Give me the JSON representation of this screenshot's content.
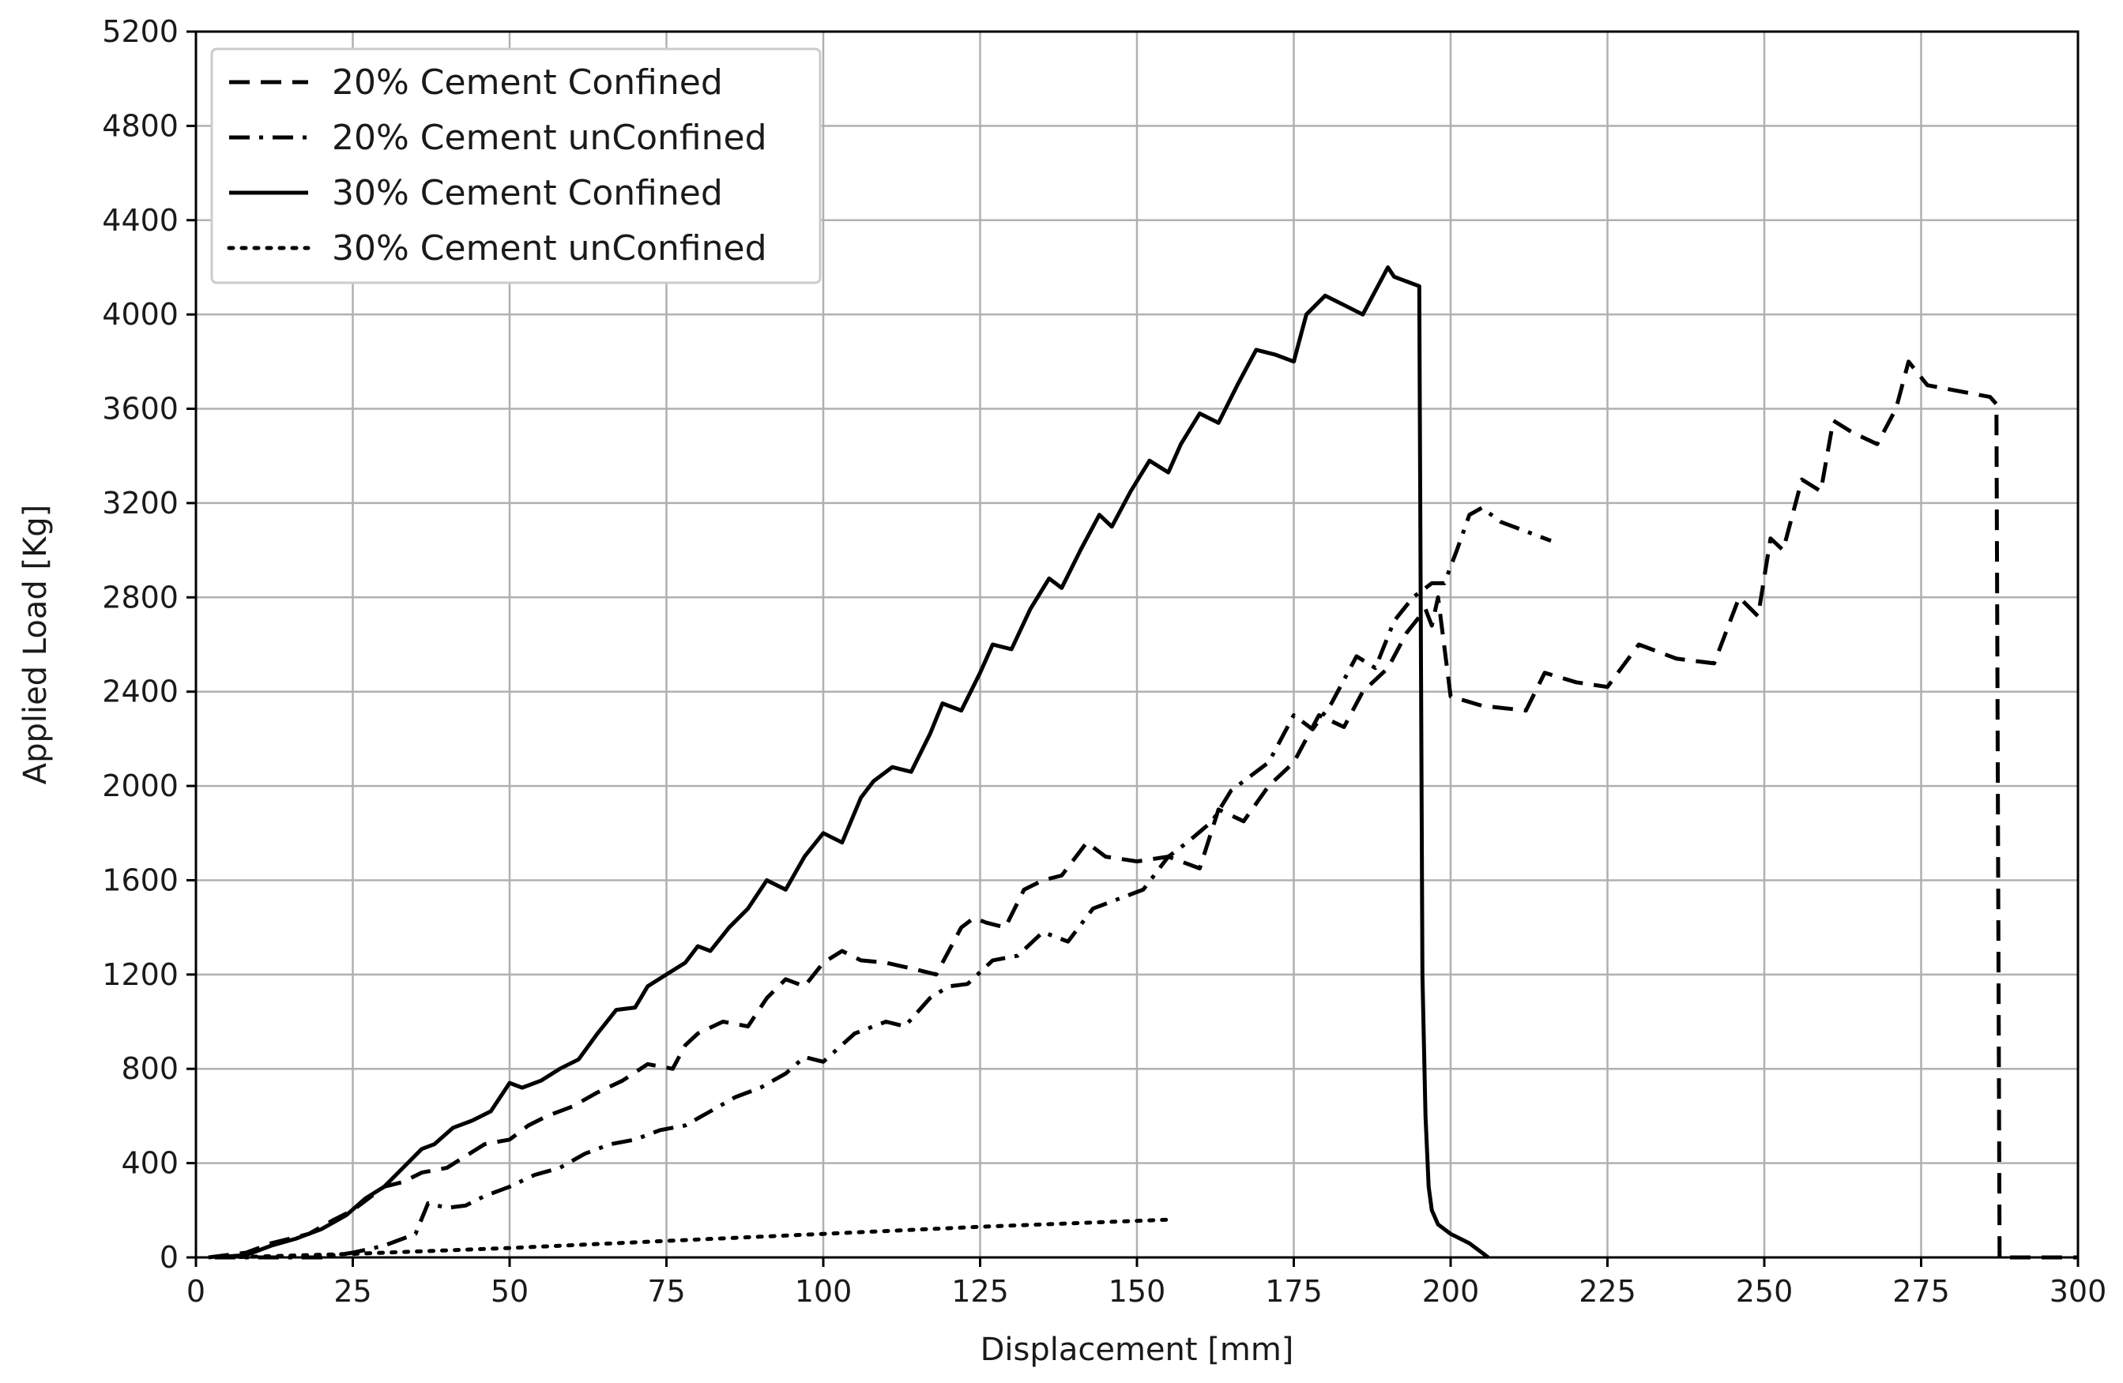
{
  "chart_data": {
    "type": "line",
    "title": "",
    "xlabel": "Displacement [mm]",
    "ylabel": "Applied Load [Kg]",
    "xlim": [
      0,
      300
    ],
    "ylim": [
      0,
      5200
    ],
    "xticks": [
      0,
      25,
      50,
      75,
      100,
      125,
      150,
      175,
      200,
      225,
      250,
      275,
      300
    ],
    "yticks": [
      0,
      400,
      800,
      1200,
      1600,
      2000,
      2400,
      2800,
      3200,
      3600,
      4000,
      4400,
      4800,
      5200
    ],
    "grid": true,
    "legend_position": "top-left",
    "series": [
      {
        "name": "20% Cement Confined",
        "linestyle": "dashed",
        "color": "#000000",
        "x": [
          2,
          8,
          12,
          18,
          22,
          25,
          28,
          30,
          33,
          36,
          40,
          43,
          46,
          50,
          53,
          56,
          60,
          64,
          68,
          72,
          76,
          78,
          80,
          84,
          88,
          91,
          94,
          97,
          100,
          103,
          106,
          110,
          115,
          118,
          122,
          124,
          126,
          129,
          132,
          135,
          138,
          142,
          145,
          150,
          155,
          160,
          163,
          167,
          171,
          175,
          179,
          183,
          186,
          190,
          193,
          196,
          197,
          198,
          200,
          205,
          212,
          215,
          220,
          225,
          230,
          236,
          242,
          246,
          249,
          251,
          253,
          256,
          259,
          261,
          264,
          268,
          271,
          273,
          276,
          280,
          286,
          287,
          287.5,
          295,
          300
        ],
        "y": [
          0,
          20,
          60,
          100,
          160,
          200,
          260,
          300,
          320,
          360,
          380,
          430,
          480,
          500,
          560,
          600,
          640,
          700,
          750,
          820,
          800,
          900,
          950,
          1000,
          980,
          1100,
          1180,
          1150,
          1250,
          1300,
          1260,
          1250,
          1220,
          1200,
          1400,
          1440,
          1420,
          1400,
          1560,
          1600,
          1620,
          1760,
          1700,
          1680,
          1700,
          1650,
          1900,
          1850,
          2000,
          2100,
          2300,
          2250,
          2400,
          2500,
          2650,
          2750,
          2680,
          2800,
          2380,
          2340,
          2320,
          2480,
          2440,
          2420,
          2600,
          2540,
          2520,
          2800,
          2720,
          3050,
          3000,
          3300,
          3250,
          3550,
          3500,
          3450,
          3600,
          3800,
          3700,
          3680,
          3650,
          3620,
          0,
          0,
          0
        ]
      },
      {
        "name": "20% Cement unConfined",
        "linestyle": "dashdot",
        "color": "#000000",
        "x": [
          3,
          15,
          20,
          25,
          30,
          35,
          37,
          40,
          43,
          46,
          50,
          54,
          58,
          62,
          66,
          70,
          74,
          78,
          82,
          86,
          90,
          94,
          97,
          100,
          105,
          110,
          113,
          117,
          120,
          123,
          127,
          131,
          135,
          139,
          143,
          147,
          151,
          155,
          158,
          162,
          165,
          168,
          171,
          175,
          178,
          181,
          185,
          188,
          191,
          194,
          197,
          199,
          201,
          203,
          205,
          208,
          212,
          216
        ],
        "y": [
          0,
          0,
          0,
          20,
          50,
          100,
          230,
          210,
          220,
          260,
          300,
          350,
          380,
          440,
          480,
          500,
          540,
          560,
          620,
          680,
          720,
          780,
          850,
          830,
          950,
          1000,
          980,
          1100,
          1150,
          1160,
          1260,
          1280,
          1380,
          1340,
          1480,
          1520,
          1560,
          1700,
          1760,
          1850,
          1980,
          2040,
          2100,
          2300,
          2240,
          2350,
          2550,
          2500,
          2700,
          2800,
          2860,
          2860,
          3000,
          3150,
          3180,
          3120,
          3080,
          3040
        ]
      },
      {
        "name": "30% Cement Confined",
        "linestyle": "solid",
        "color": "#000000",
        "x": [
          3,
          8,
          12,
          16,
          20,
          24,
          27,
          30,
          33,
          36,
          38,
          41,
          44,
          47,
          50,
          52,
          55,
          58,
          61,
          64,
          67,
          70,
          72,
          75,
          78,
          80,
          82,
          85,
          88,
          91,
          94,
          97,
          100,
          103,
          106,
          108,
          111,
          114,
          117,
          119,
          122,
          125,
          127,
          130,
          133,
          136,
          138,
          141,
          144,
          146,
          149,
          152,
          155,
          157,
          160,
          163,
          166,
          169,
          172,
          175,
          177,
          180,
          183,
          186,
          188,
          190,
          191,
          193,
          195,
          195.5,
          196,
          196.5,
          197,
          198,
          200,
          203,
          205,
          206
        ],
        "y": [
          0,
          10,
          50,
          80,
          120,
          180,
          250,
          300,
          380,
          460,
          480,
          550,
          580,
          620,
          740,
          720,
          750,
          800,
          840,
          950,
          1050,
          1060,
          1150,
          1200,
          1250,
          1320,
          1300,
          1400,
          1480,
          1600,
          1560,
          1700,
          1800,
          1760,
          1950,
          2020,
          2080,
          2060,
          2220,
          2350,
          2320,
          2480,
          2600,
          2580,
          2750,
          2880,
          2840,
          3000,
          3150,
          3100,
          3250,
          3380,
          3330,
          3450,
          3580,
          3540,
          3700,
          3850,
          3830,
          3800,
          4000,
          4080,
          4040,
          4000,
          4100,
          4200,
          4160,
          4140,
          4120,
          1200,
          600,
          300,
          200,
          140,
          100,
          60,
          20,
          0
        ]
      },
      {
        "name": "30% Cement unConfined",
        "linestyle": "dotted",
        "color": "#000000",
        "x": [
          5,
          25,
          50,
          75,
          100,
          125,
          155
        ],
        "y": [
          0,
          15,
          40,
          70,
          100,
          130,
          160
        ]
      }
    ]
  }
}
